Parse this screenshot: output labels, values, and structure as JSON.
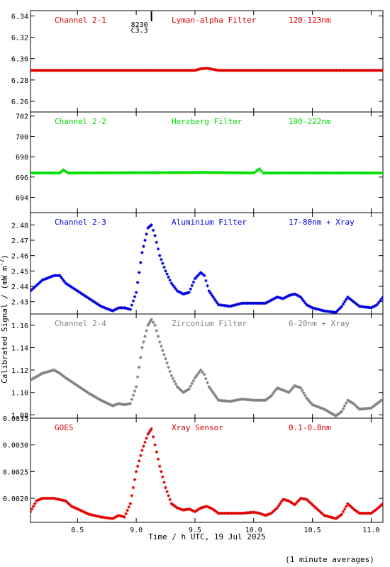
{
  "figure": {
    "xlabel": "Time / h UTC, 19 Jul 2025",
    "ylabel": "Calibrated Signal / (mW m",
    "ylabel_sup": "-2",
    "ylabel_close": ")",
    "footnote": "(1 minute averages)",
    "flare_marker": {
      "time": 9.13,
      "line1": "8230",
      "line2": "C3.3"
    }
  },
  "chart_data": [
    {
      "type": "scatter",
      "channel": "Channel 2-1",
      "filter": "Lyman-alpha Filter",
      "band": "120-123nm",
      "color": "#e00000",
      "xlim": [
        8.1,
        11.1
      ],
      "ylim": [
        6.25,
        6.345
      ],
      "yticks": [
        6.26,
        6.28,
        6.3,
        6.32,
        6.34
      ],
      "ytick_labels": [
        "6.26",
        "6.28",
        "6.30",
        "6.32",
        "6.34"
      ],
      "x": [
        8.1,
        9.5,
        9.55,
        9.6,
        9.65,
        9.7,
        11.1
      ],
      "y": [
        6.289,
        6.289,
        6.2905,
        6.291,
        6.29,
        6.289,
        6.289
      ]
    },
    {
      "type": "scatter",
      "channel": "Channel 2-2",
      "filter": "Herzberg Filter",
      "band": "190-222nm",
      "color": "#00e000",
      "xlim": [
        8.1,
        11.1
      ],
      "ylim": [
        692.5,
        702.4
      ],
      "yticks": [
        694,
        696,
        698,
        700,
        702
      ],
      "ytick_labels": [
        "694",
        "696",
        "698",
        "700",
        "702"
      ],
      "x": [
        8.1,
        8.35,
        8.38,
        8.42,
        9.6,
        10.0,
        10.05,
        10.08,
        11.1
      ],
      "y": [
        696.4,
        696.4,
        696.7,
        696.4,
        696.45,
        696.4,
        696.8,
        696.4,
        696.4
      ]
    },
    {
      "type": "scatter",
      "channel": "Channel 2-3",
      "filter": "Aluminium Filter",
      "band": "17-80nm + Xray",
      "color": "#0000e0",
      "xlim": [
        8.1,
        11.1
      ],
      "ylim": [
        2.422,
        2.488
      ],
      "yticks": [
        2.43,
        2.44,
        2.45,
        2.46,
        2.47,
        2.48
      ],
      "ytick_labels": [
        "2.43",
        "2.44",
        "2.45",
        "2.46",
        "2.47",
        "2.48"
      ],
      "x": [
        8.1,
        8.2,
        8.3,
        8.35,
        8.4,
        8.5,
        8.6,
        8.7,
        8.8,
        8.85,
        8.9,
        8.95,
        9.0,
        9.05,
        9.1,
        9.13,
        9.16,
        9.2,
        9.25,
        9.3,
        9.35,
        9.4,
        9.45,
        9.5,
        9.55,
        9.58,
        9.62,
        9.7,
        9.8,
        9.9,
        10.0,
        10.1,
        10.15,
        10.2,
        10.25,
        10.3,
        10.35,
        10.4,
        10.45,
        10.5,
        10.6,
        10.7,
        10.75,
        10.8,
        10.85,
        10.9,
        11.0,
        11.05,
        11.1
      ],
      "y": [
        2.437,
        2.444,
        2.447,
        2.447,
        2.442,
        2.437,
        2.432,
        2.427,
        2.424,
        2.426,
        2.426,
        2.425,
        2.436,
        2.462,
        2.478,
        2.48,
        2.473,
        2.46,
        2.45,
        2.442,
        2.437,
        2.435,
        2.436,
        2.445,
        2.449,
        2.447,
        2.437,
        2.428,
        2.427,
        2.429,
        2.429,
        2.429,
        2.431,
        2.433,
        2.432,
        2.434,
        2.435,
        2.433,
        2.428,
        2.426,
        2.424,
        2.423,
        2.427,
        2.433,
        2.43,
        2.427,
        2.426,
        2.428,
        2.433
      ]
    },
    {
      "type": "scatter",
      "channel": "Channel 2-4",
      "filter": "Zirconium Filter",
      "band": "6-20nm + Xray",
      "color": "#808080",
      "xlim": [
        8.1,
        11.1
      ],
      "ylim": [
        1.077,
        1.17
      ],
      "yticks": [
        1.08,
        1.1,
        1.12,
        1.14,
        1.16
      ],
      "ytick_labels": [
        "1.08",
        "1.10",
        "1.12",
        "1.14",
        "1.16"
      ],
      "x": [
        8.1,
        8.2,
        8.3,
        8.35,
        8.4,
        8.5,
        8.6,
        8.7,
        8.8,
        8.85,
        8.9,
        8.95,
        9.0,
        9.05,
        9.1,
        9.13,
        9.16,
        9.2,
        9.25,
        9.3,
        9.35,
        9.4,
        9.45,
        9.5,
        9.55,
        9.58,
        9.62,
        9.7,
        9.8,
        9.9,
        10.0,
        10.1,
        10.15,
        10.2,
        10.25,
        10.3,
        10.35,
        10.4,
        10.45,
        10.5,
        10.6,
        10.7,
        10.75,
        10.8,
        10.85,
        10.9,
        11.0,
        11.05,
        11.1
      ],
      "y": [
        1.111,
        1.117,
        1.12,
        1.117,
        1.113,
        1.106,
        1.099,
        1.093,
        1.088,
        1.09,
        1.089,
        1.09,
        1.105,
        1.14,
        1.16,
        1.165,
        1.16,
        1.145,
        1.13,
        1.115,
        1.105,
        1.1,
        1.103,
        1.113,
        1.12,
        1.116,
        1.105,
        1.093,
        1.092,
        1.094,
        1.093,
        1.093,
        1.097,
        1.104,
        1.102,
        1.1,
        1.106,
        1.104,
        1.095,
        1.089,
        1.085,
        1.079,
        1.083,
        1.093,
        1.09,
        1.085,
        1.086,
        1.09,
        1.094
      ]
    },
    {
      "type": "scatter",
      "channel": "GOES",
      "filter": "Xray Sensor",
      "band": "0.1-0.8nm",
      "color": "#e00000",
      "xlim": [
        8.1,
        11.1
      ],
      "ylim": [
        0.00155,
        0.0035
      ],
      "yticks": [
        0.002,
        0.0025,
        0.003,
        0.0035
      ],
      "ytick_labels": [
        "0.0020",
        "0.0025",
        "0.0030",
        "0.0035"
      ],
      "x": [
        8.1,
        8.15,
        8.2,
        8.3,
        8.4,
        8.45,
        8.5,
        8.6,
        8.7,
        8.8,
        8.85,
        8.9,
        8.95,
        9.0,
        9.05,
        9.1,
        9.13,
        9.16,
        9.2,
        9.25,
        9.3,
        9.35,
        9.4,
        9.45,
        9.5,
        9.55,
        9.6,
        9.65,
        9.7,
        9.8,
        9.9,
        10.0,
        10.05,
        10.1,
        10.15,
        10.2,
        10.25,
        10.3,
        10.35,
        10.4,
        10.45,
        10.5,
        10.6,
        10.7,
        10.75,
        10.8,
        10.85,
        10.9,
        11.0,
        11.05,
        11.1
      ],
      "y": [
        0.00175,
        0.00195,
        0.002,
        0.002,
        0.00195,
        0.00185,
        0.0018,
        0.0017,
        0.00165,
        0.00162,
        0.00168,
        0.00165,
        0.0019,
        0.0025,
        0.0029,
        0.0032,
        0.0033,
        0.003,
        0.0026,
        0.0022,
        0.0019,
        0.00182,
        0.00178,
        0.0018,
        0.00175,
        0.00182,
        0.00185,
        0.0018,
        0.00172,
        0.00172,
        0.00172,
        0.00174,
        0.00172,
        0.00168,
        0.00172,
        0.00182,
        0.00198,
        0.00195,
        0.00188,
        0.002,
        0.00198,
        0.00188,
        0.00168,
        0.00162,
        0.0017,
        0.0019,
        0.0018,
        0.00172,
        0.00172,
        0.0018,
        0.0019
      ]
    }
  ],
  "x_axis": {
    "ticks": [
      8.5,
      9.0,
      9.5,
      10.0,
      10.5,
      11.0
    ],
    "tick_labels": [
      "8.5",
      "9.0",
      "9.5",
      "10.0",
      "10.5",
      "11.0"
    ]
  }
}
